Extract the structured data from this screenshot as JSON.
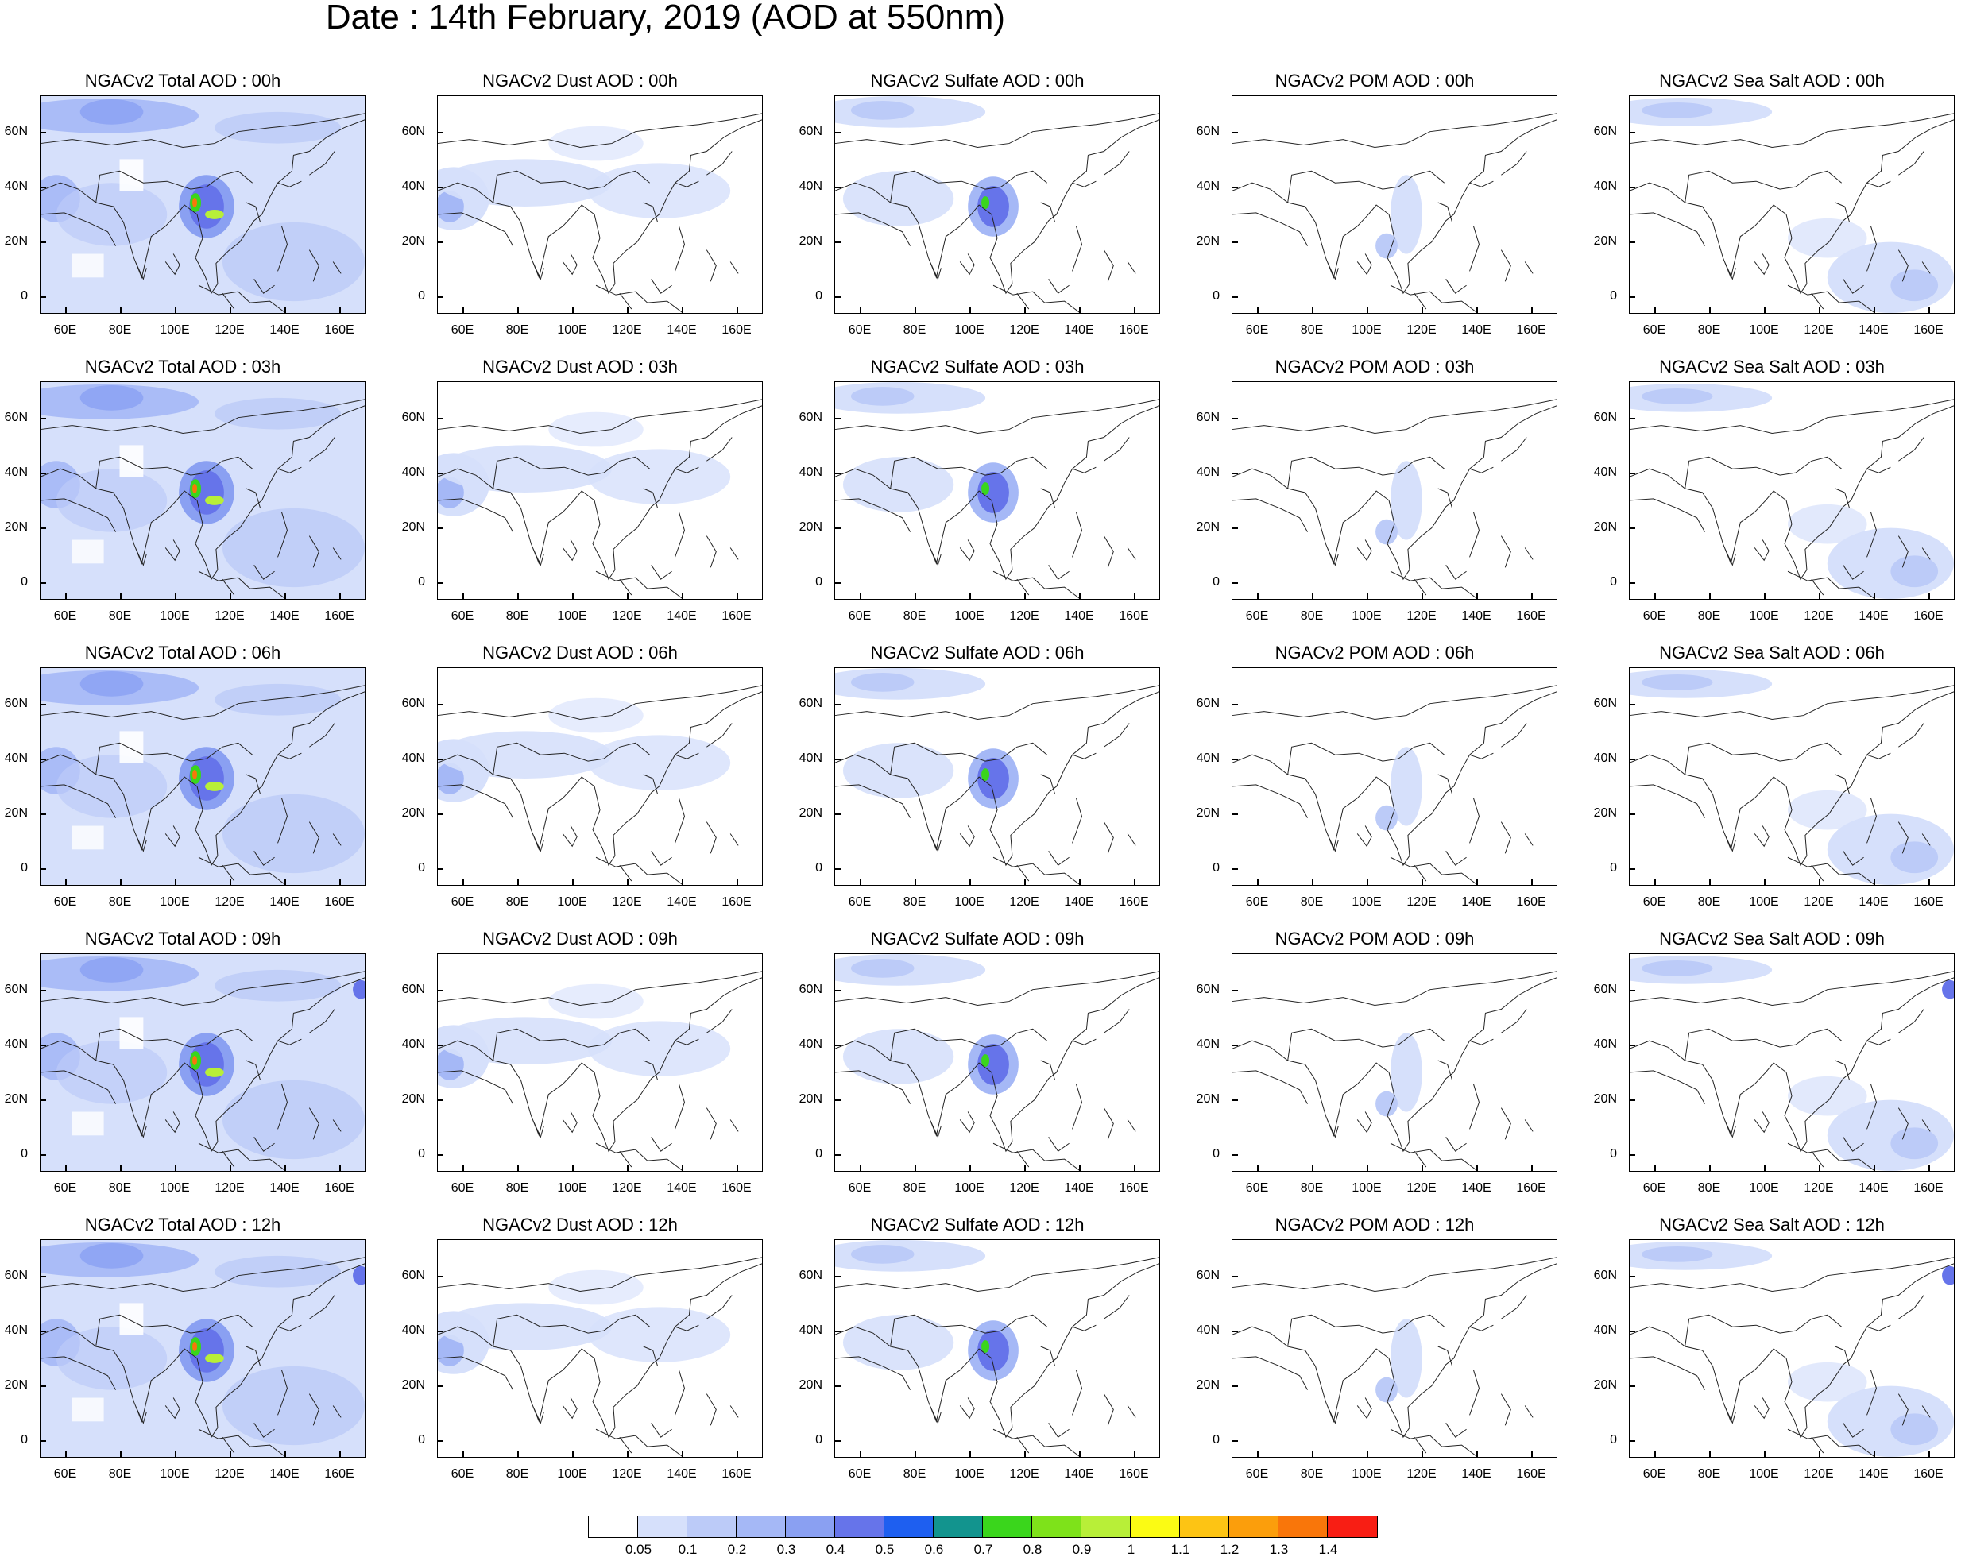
{
  "title": "Date : 14th February, 2019 (AOD at 550nm)",
  "axes": {
    "y_labels": [
      "60N",
      "40N",
      "20N",
      "0"
    ],
    "x_labels": [
      "60E",
      "80E",
      "100E",
      "120E",
      "140E",
      "160E"
    ]
  },
  "panel_titles": [
    [
      "NGACv2 Total AOD : 00h",
      "NGACv2 Dust AOD : 00h",
      "NGACv2 Sulfate AOD : 00h",
      "NGACv2 POM AOD : 00h",
      "NGACv2 Sea Salt AOD : 00h"
    ],
    [
      "NGACv2 Total AOD : 03h",
      "NGACv2 Dust AOD : 03h",
      "NGACv2 Sulfate AOD : 03h",
      "NGACv2 POM AOD : 03h",
      "NGACv2 Sea Salt AOD : 03h"
    ],
    [
      "NGACv2 Total AOD : 06h",
      "NGACv2 Dust AOD : 06h",
      "NGACv2 Sulfate AOD : 06h",
      "NGACv2 POM AOD : 06h",
      "NGACv2 Sea Salt AOD : 06h"
    ],
    [
      "NGACv2 Total AOD : 09h",
      "NGACv2 Dust AOD : 09h",
      "NGACv2 Sulfate AOD : 09h",
      "NGACv2 POM AOD : 09h",
      "NGACv2 Sea Salt  AOD : 09h"
    ],
    [
      "NGACv2 Total AOD  : 12h",
      "NGACv2 Dust AOD : 12h",
      "NGACv2 Sulfate AOD : 12h",
      "NGACv2 POM  AOD : 12h",
      "NGACv2 Sea Salt  AOD : 12h"
    ]
  ],
  "colorbar": {
    "colors": [
      "#ffffff",
      "#d6e0fb",
      "#bccbf8",
      "#a5b8f6",
      "#8aa0f2",
      "#6674ea",
      "#1e5ff0",
      "#12948e",
      "#3ad61c",
      "#7ee21a",
      "#b8ef38",
      "#fbfb14",
      "#fdc414",
      "#fb9e0c",
      "#f9760a",
      "#f81e14"
    ],
    "labels": [
      "0.05",
      "0.1",
      "0.2",
      "0.3",
      "0.4",
      "0.5",
      "0.6",
      "0.7",
      "0.8",
      "0.9",
      "1",
      "1.1",
      "1.2",
      "1.3",
      "1.4"
    ]
  }
}
